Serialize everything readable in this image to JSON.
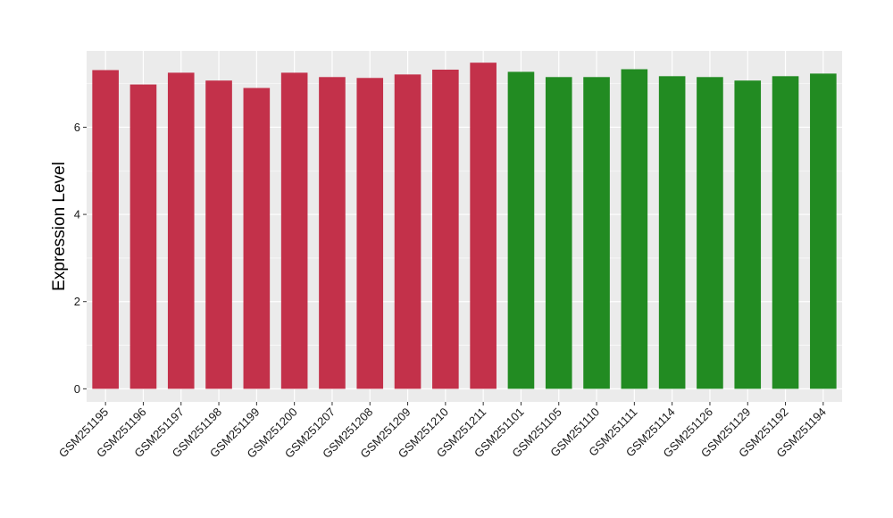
{
  "chart_data": {
    "type": "bar",
    "title": "",
    "xlabel": "",
    "ylabel": "Expression Level",
    "ylim": [
      -0.3,
      7.75
    ],
    "yticks": [
      0,
      2,
      4,
      6
    ],
    "categories": [
      "GSM251195",
      "GSM251196",
      "GSM251197",
      "GSM251198",
      "GSM251199",
      "GSM251200",
      "GSM251207",
      "GSM251208",
      "GSM251209",
      "GSM251210",
      "GSM251211",
      "GSM251101",
      "GSM251105",
      "GSM251110",
      "GSM251111",
      "GSM251114",
      "GSM251126",
      "GSM251129",
      "GSM251192",
      "GSM251194"
    ],
    "values": [
      7.31,
      6.98,
      7.25,
      7.07,
      6.9,
      7.25,
      7.15,
      7.13,
      7.21,
      7.32,
      7.48,
      7.27,
      7.15,
      7.15,
      7.33,
      7.17,
      7.15,
      7.07,
      7.17,
      7.23
    ],
    "groups": [
      "red",
      "red",
      "red",
      "red",
      "red",
      "red",
      "red",
      "red",
      "red",
      "red",
      "red",
      "green",
      "green",
      "green",
      "green",
      "green",
      "green",
      "green",
      "green",
      "green"
    ],
    "grid": true,
    "legend": "none",
    "colors": {
      "red": "#c3314a",
      "green": "#228b22",
      "panel": "#ebebeb",
      "gridline": "#ffffff"
    }
  }
}
